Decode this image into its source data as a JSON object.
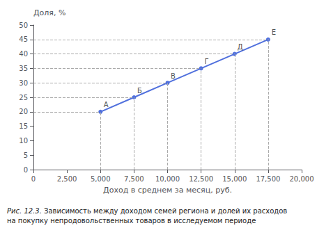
{
  "chart_data": {
    "type": "line",
    "title": "Рис. 12.3.",
    "subtitle": " Зависимость между доходом семей региона и долей их расходов\nна покупку непродовольственных товаров в исследуемом периоде",
    "x_label": "Доход в среднем за месяц, руб.",
    "y_label": "Доля, %",
    "x": [
      5000,
      7500,
      10000,
      12500,
      15000,
      17500
    ],
    "values": [
      20,
      25,
      30,
      35,
      40,
      45
    ],
    "annotations": [
      {
        "text": "А",
        "x": 5000,
        "y": 20
      },
      {
        "text": "Б",
        "x": 7500,
        "y": 25
      },
      {
        "text": "В",
        "x": 10000,
        "y": 30
      },
      {
        "text": "Г",
        "x": 12500,
        "y": 35
      },
      {
        "text": "Д",
        "x": 15000,
        "y": 40
      },
      {
        "text": "Е",
        "x": 17500,
        "y": 45
      }
    ],
    "xlim": [
      0,
      20000
    ],
    "ylim": [
      0,
      50
    ],
    "xticks": [
      0,
      2500,
      5000,
      7500,
      10000,
      12500,
      15000,
      17500,
      20000
    ],
    "yticks": [
      0,
      5,
      10,
      15,
      20,
      25,
      30,
      35,
      40,
      45,
      50
    ],
    "grid": false,
    "marker": "circle"
  }
}
